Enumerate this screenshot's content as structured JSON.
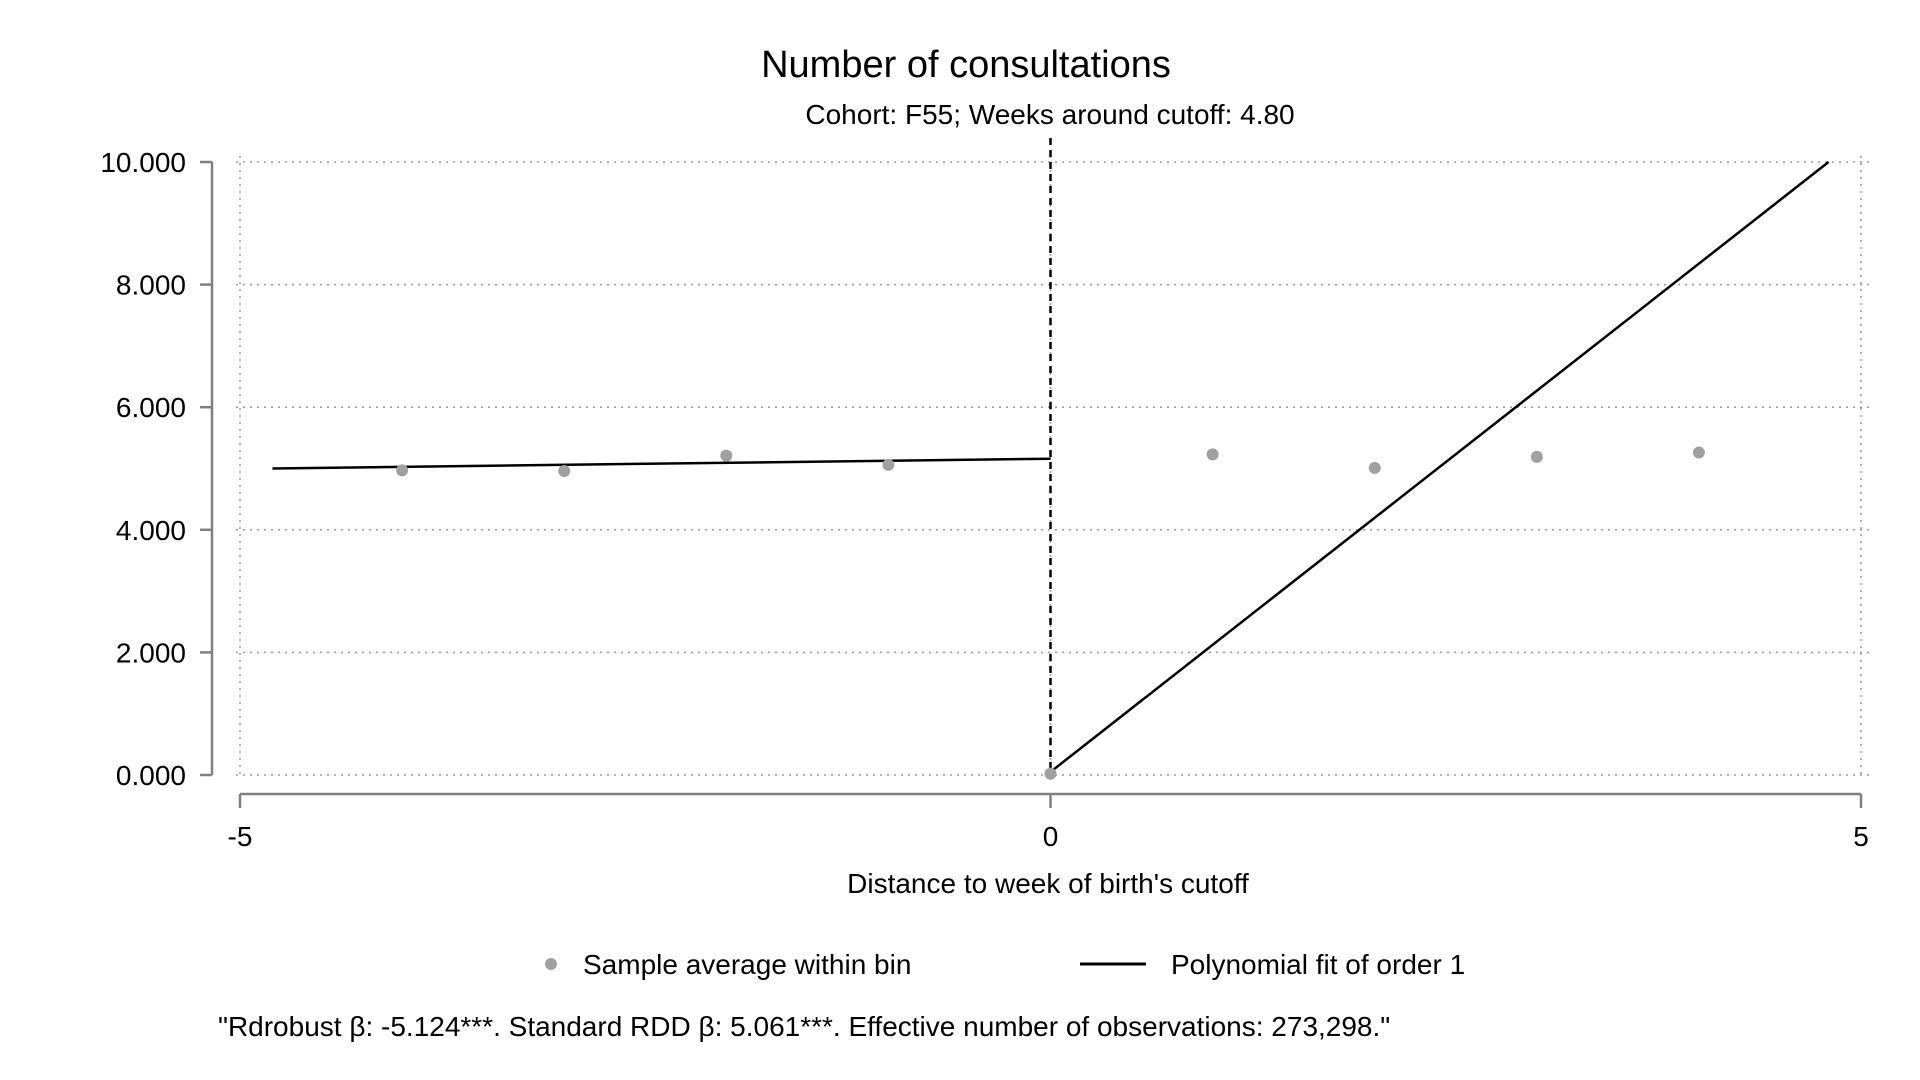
{
  "chart_data": {
    "type": "scatter",
    "title": "Number of consultations",
    "subtitle": "Cohort: F55; Weeks around cutoff: 4.80",
    "xlabel": "Distance to week of birth's cutoff",
    "ylabel": "",
    "xlim": [
      -5,
      5
    ],
    "ylim": [
      0,
      10
    ],
    "xticks": [
      -5,
      0,
      5
    ],
    "xtick_labels": [
      "-5",
      "0",
      "5"
    ],
    "yticks": [
      0,
      2,
      4,
      6,
      8,
      10
    ],
    "ytick_labels": [
      "0.000",
      "2.000",
      "4.000",
      "6.000",
      "8.000",
      "10.000"
    ],
    "grid": true,
    "cutoff_x": 0,
    "series": [
      {
        "name": "Sample average within bin",
        "kind": "scatter",
        "color": "#a0a0a0",
        "points": [
          {
            "x": -4.0,
            "y": 4.97
          },
          {
            "x": -3.0,
            "y": 4.96
          },
          {
            "x": -2.0,
            "y": 5.21
          },
          {
            "x": -1.0,
            "y": 5.06
          },
          {
            "x": 0.0,
            "y": 0.02
          },
          {
            "x": 1.0,
            "y": 5.23
          },
          {
            "x": 2.0,
            "y": 5.01
          },
          {
            "x": 3.0,
            "y": 5.19
          },
          {
            "x": 4.0,
            "y": 5.26
          }
        ]
      },
      {
        "name": "Polynomial fit of order 1",
        "kind": "line",
        "color": "#000000",
        "segments": [
          [
            {
              "x": -4.8,
              "y": 5.0
            },
            {
              "x": 0.0,
              "y": 5.16
            }
          ],
          [
            {
              "x": 0.0,
              "y": 0.05
            },
            {
              "x": 4.8,
              "y": 10.0
            }
          ]
        ]
      }
    ],
    "legend_position": "bottom",
    "note": "\"Rdrobust β: -5.124***. Standard RDD β: 5.061***. Effective number of observations: 273,298.\""
  }
}
